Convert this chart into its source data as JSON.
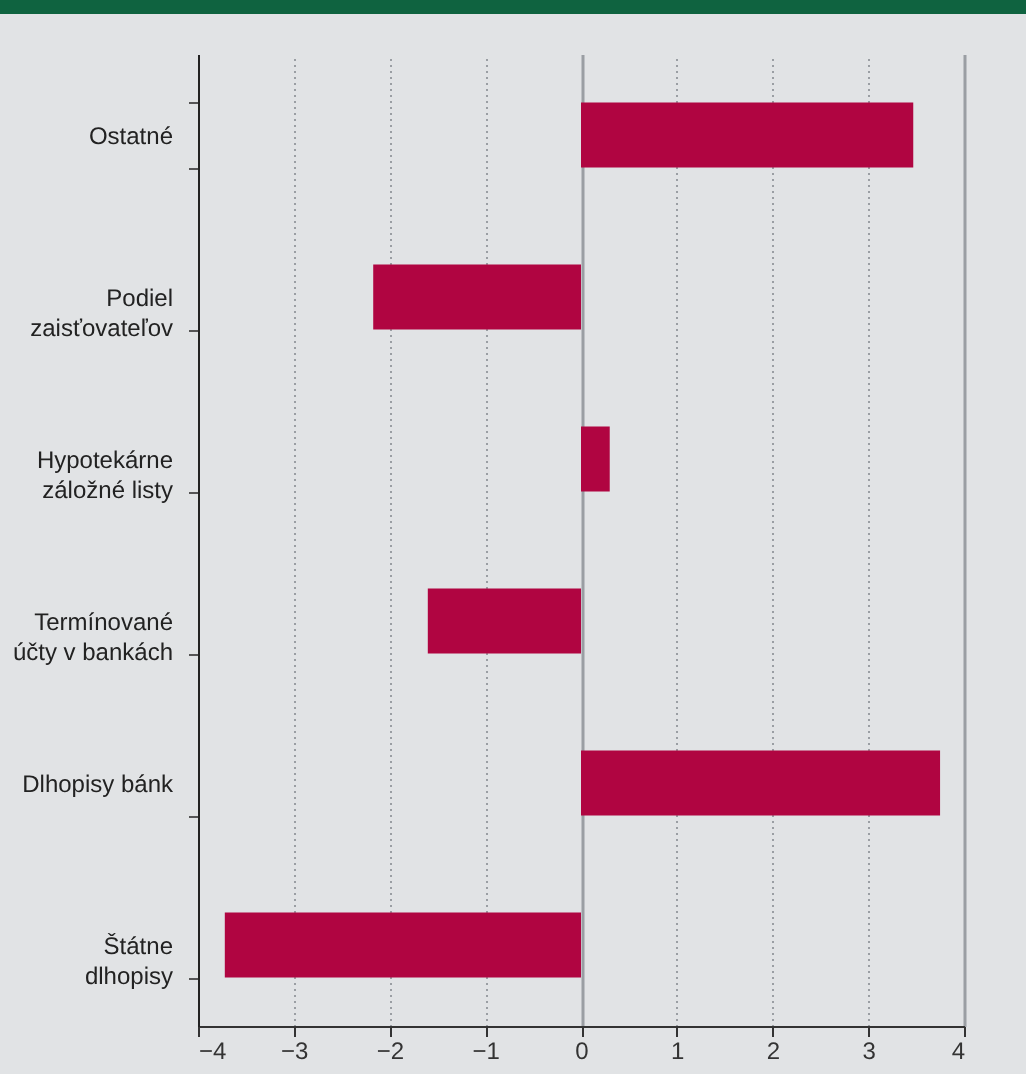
{
  "chart_data": {
    "type": "bar",
    "orientation": "horizontal",
    "categories": [
      "Ostatné",
      "Podiel\nzaisťovateľov",
      "Hypotekárne\nzáložné listy",
      "Termínované\núčty v bankách",
      "Dlhopisy bánk",
      "Štátne\ndlhopisy"
    ],
    "values": [
      3.47,
      -2.17,
      0.3,
      -1.6,
      3.75,
      -3.72
    ],
    "color": "#b00541",
    "xlim": [
      -4,
      4
    ],
    "xticks": [
      -4,
      -3,
      -2,
      -1,
      0,
      1,
      2,
      3,
      4
    ],
    "grid": "x"
  }
}
